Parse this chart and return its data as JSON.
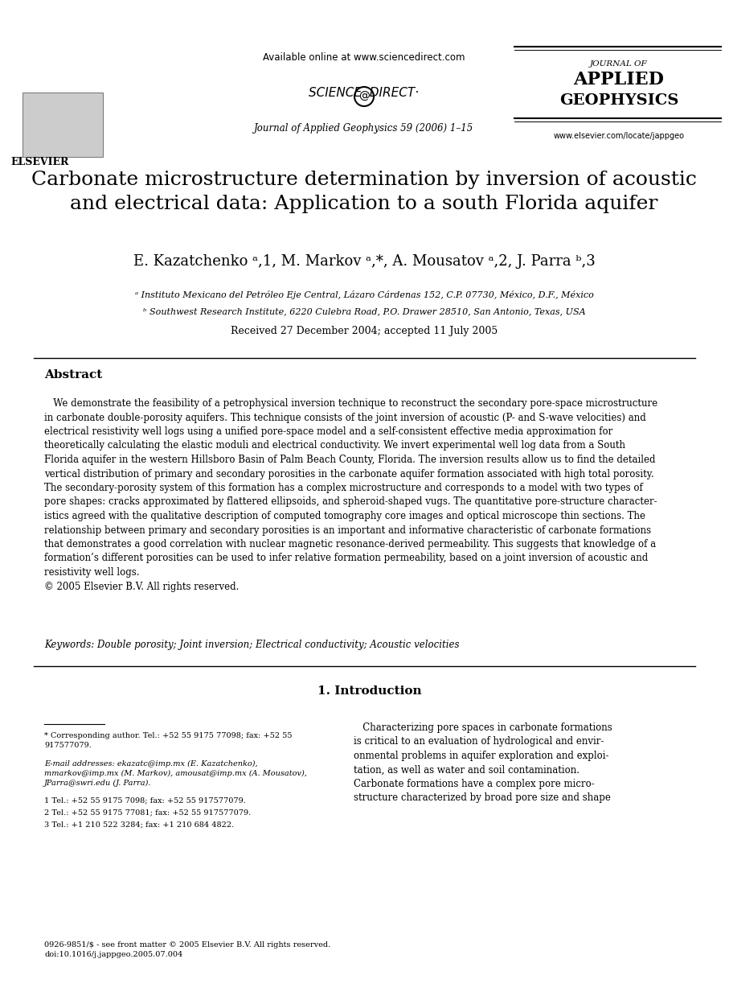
{
  "bg_color": "#ffffff",
  "header": {
    "available_online": "Available online at www.sciencedirect.com",
    "journal_line": "Journal of Applied Geophysics 59 (2006) 1–15",
    "journal_name_line1": "JOURNAL OF",
    "journal_name_line2": "APPLIED",
    "journal_name_line3": "GEOPHYSICS",
    "website": "www.elsevier.com/locate/jappgeo"
  },
  "title": "Carbonate microstructure determination by inversion of acoustic\nand electrical data: Application to a south Florida aquifer",
  "authors": "E. Kazatchenko ᵃ,1, M. Markov ᵃ,*, A. Mousatov ᵃ,2, J. Parra ᵇ,3",
  "affil_a": "ᵃ Instituto Mexicano del Petróleo Eje Central, Lázaro Cárdenas 152, C.P. 07730, México, D.F., México",
  "affil_b": "ᵇ Southwest Research Institute, 6220 Culebra Road, P.O. Drawer 28510, San Antonio, Texas, USA",
  "received": "Received 27 December 2004; accepted 11 July 2005",
  "abstract_title": "Abstract",
  "abstract_text": "   We demonstrate the feasibility of a petrophysical inversion technique to reconstruct the secondary pore-space microstructure\nin carbonate double-porosity aquifers. This technique consists of the joint inversion of acoustic (P- and S-wave velocities) and\nelectrical resistivity well logs using a unified pore-space model and a self-consistent effective media approximation for\ntheoretically calculating the elastic moduli and electrical conductivity. We invert experimental well log data from a South\nFlorida aquifer in the western Hillsboro Basin of Palm Beach County, Florida. The inversion results allow us to find the detailed\nvertical distribution of primary and secondary porosities in the carbonate aquifer formation associated with high total porosity.\nThe secondary-porosity system of this formation has a complex microstructure and corresponds to a model with two types of\npore shapes: cracks approximated by flattered ellipsoids, and spheroid-shaped vugs. The quantitative pore-structure character-\nistics agreed with the qualitative description of computed tomography core images and optical microscope thin sections. The\nrelationship between primary and secondary porosities is an important and informative characteristic of carbonate formations\nthat demonstrates a good correlation with nuclear magnetic resonance-derived permeability. This suggests that knowledge of a\nformation’s different porosities can be used to infer relative formation permeability, based on a joint inversion of acoustic and\nresistivity well logs.\n© 2005 Elsevier B.V. All rights reserved.",
  "keywords": "Keywords: Double porosity; Joint inversion; Electrical conductivity; Acoustic velocities",
  "intro_title": "1. Introduction",
  "intro_text": "   Characterizing pore spaces in carbonate formations\nis critical to an evaluation of hydrological and envir-\nonmental problems in aquifer exploration and exploi-\ntation, as well as water and soil contamination.\nCarbonate formations have a complex pore micro-\nstructure characterized by broad pore size and shape",
  "footnote_star": "* Corresponding author. Tel.: +52 55 9175 77098; fax: +52 55\n917577079.",
  "footnote_email": "E-mail addresses: ekazatc@imp.mx (E. Kazatchenko),\nmmarkov@imp.mx (M. Markov), amousat@imp.mx (A. Mousatov),\nJParra@swri.edu (J. Parra).",
  "footnote_1": "1 Tel.: +52 55 9175 7098; fax: +52 55 917577079.",
  "footnote_2": "2 Tel.: +52 55 9175 77081; fax: +52 55 917577079.",
  "footnote_3": "3 Tel.: +1 210 522 3284; fax: +1 210 684 4822.",
  "footer_issn": "0926-9851/$ - see front matter © 2005 Elsevier B.V. All rights reserved.\ndoi:10.1016/j.jappgeo.2005.07.004"
}
